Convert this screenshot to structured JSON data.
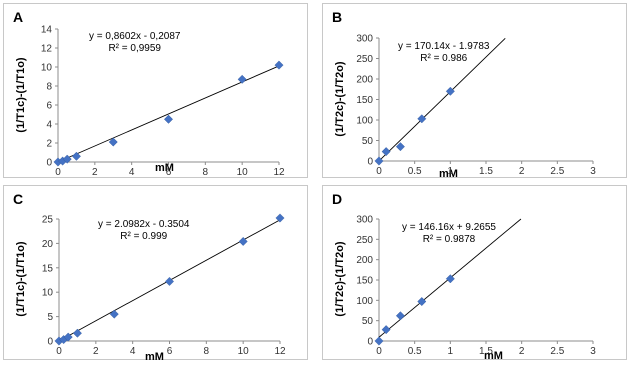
{
  "chart_data": [
    {
      "id": "A",
      "type": "scatter",
      "label": "A",
      "xlabel": "mM",
      "ylabel": "(1/T1c)-(1/T1o)",
      "xlim": [
        0,
        12
      ],
      "ylim": [
        0,
        14
      ],
      "xticks": [
        0,
        2,
        4,
        6,
        8,
        10,
        12
      ],
      "yticks": [
        0,
        2,
        4,
        6,
        8,
        10,
        12,
        14
      ],
      "x": [
        0,
        0.25,
        0.5,
        1,
        3,
        6,
        10,
        12
      ],
      "y": [
        0,
        0.1,
        0.3,
        0.6,
        2.1,
        4.5,
        8.7,
        10.2
      ],
      "trendline": {
        "slope": 0.8602,
        "intercept": -0.2087,
        "x_range": [
          0,
          12
        ]
      },
      "equation": "y = 0,8602x - 0,2087",
      "r2": "R² = 0,9959",
      "marker_color": "#4472c4"
    },
    {
      "id": "B",
      "type": "scatter",
      "label": "B",
      "xlabel": "mM",
      "ylabel": "(1/T2c)-(1/T2o)",
      "xlim": [
        0,
        3
      ],
      "ylim": [
        0,
        300
      ],
      "xticks": [
        "0",
        "0.5",
        "1",
        "1.5",
        "2",
        "2.5",
        "3"
      ],
      "yticks": [
        0,
        50,
        100,
        150,
        200,
        250,
        300
      ],
      "x": [
        0,
        0.1,
        0.3,
        0.6,
        1
      ],
      "y": [
        0,
        23,
        35,
        103,
        170
      ],
      "trendline": {
        "slope": 170.14,
        "intercept": -1.9783,
        "x_range": [
          0,
          1.77
        ]
      },
      "equation": "y = 170.14x - 1.9783",
      "r2": "R² = 0.986",
      "marker_color": "#4472c4"
    },
    {
      "id": "C",
      "type": "scatter",
      "label": "C",
      "xlabel": "mM",
      "ylabel": "(1/T1c)-(1/T1o)",
      "xlim": [
        0,
        12
      ],
      "ylim": [
        0,
        25
      ],
      "xticks": [
        0,
        2,
        4,
        6,
        8,
        10,
        12
      ],
      "yticks": [
        0,
        5,
        10,
        15,
        20,
        25
      ],
      "x": [
        0,
        0.25,
        0.5,
        1,
        3,
        6,
        10,
        12
      ],
      "y": [
        0,
        0.3,
        0.8,
        1.6,
        5.5,
        12.2,
        20.4,
        25.2
      ],
      "trendline": {
        "slope": 2.0982,
        "intercept": -0.3504,
        "x_range": [
          0,
          12
        ]
      },
      "equation": "y = 2.0982x - 0.3504",
      "r2": "R² = 0.999",
      "marker_color": "#4472c4"
    },
    {
      "id": "D",
      "type": "scatter",
      "label": "D",
      "xlabel": "mM",
      "ylabel": "(1/T2c)-(1/T2o)",
      "xlim": [
        0,
        3
      ],
      "ylim": [
        0,
        300
      ],
      "xticks": [
        "0",
        "0.5",
        "1",
        "1.5",
        "2",
        "2.5",
        "3"
      ],
      "yticks": [
        0,
        50,
        100,
        150,
        200,
        250,
        300
      ],
      "x": [
        0,
        0.1,
        0.3,
        0.6,
        1
      ],
      "y": [
        0,
        28,
        62,
        97,
        153
      ],
      "trendline": {
        "slope": 146.16,
        "intercept": 9.2655,
        "x_range": [
          0,
          1.99
        ]
      },
      "equation": "y = 146.16x + 9.2655",
      "r2": "R² = 0.9878",
      "marker_color": "#4472c4"
    }
  ]
}
